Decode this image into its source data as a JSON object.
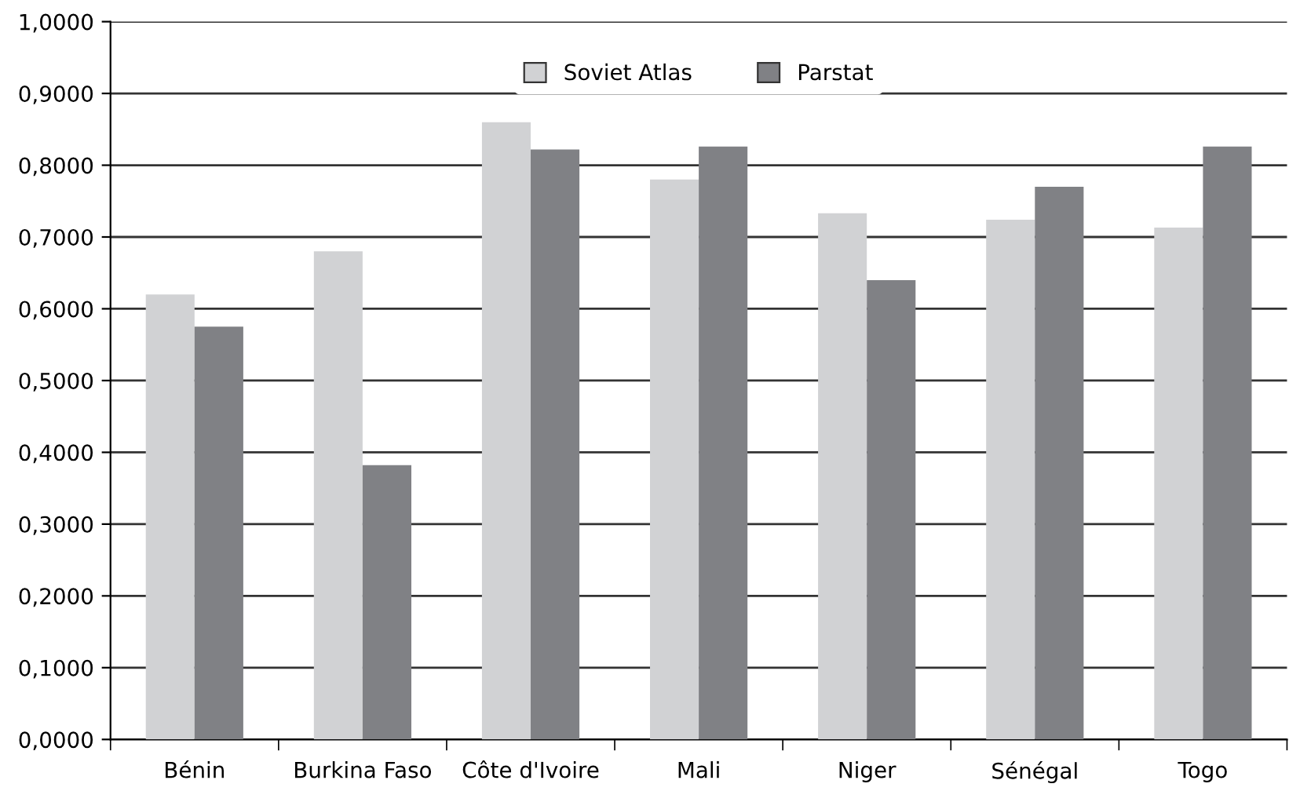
{
  "chart_data": {
    "type": "bar",
    "categories": [
      "Bénin",
      "Burkina Faso",
      "Côte d'Ivoire",
      "Mali",
      "Niger",
      "Sénégal",
      "Togo"
    ],
    "series": [
      {
        "name": "Soviet Atlas",
        "color": "#d1d2d4",
        "values": [
          0.62,
          0.68,
          0.86,
          0.78,
          0.733,
          0.724,
          0.713
        ]
      },
      {
        "name": "Parstat",
        "color": "#808185",
        "values": [
          0.575,
          0.382,
          0.822,
          0.826,
          0.64,
          0.77,
          0.826
        ]
      }
    ],
    "ylim": [
      0,
      1
    ],
    "yticks": [
      {
        "value": 0,
        "label": "0,0000"
      },
      {
        "value": 0.1,
        "label": "0,1000"
      },
      {
        "value": 0.2,
        "label": "0,2000"
      },
      {
        "value": 0.3,
        "label": "0,3000"
      },
      {
        "value": 0.4,
        "label": "0,4000"
      },
      {
        "value": 0.5,
        "label": "0,5000"
      },
      {
        "value": 0.6,
        "label": "0,6000"
      },
      {
        "value": 0.7,
        "label": "0,7000"
      },
      {
        "value": 0.8,
        "label": "0,8000"
      },
      {
        "value": 0.9,
        "label": "0,9000"
      },
      {
        "value": 1,
        "label": "1,0000"
      }
    ],
    "grid": "y",
    "legend": "top"
  }
}
